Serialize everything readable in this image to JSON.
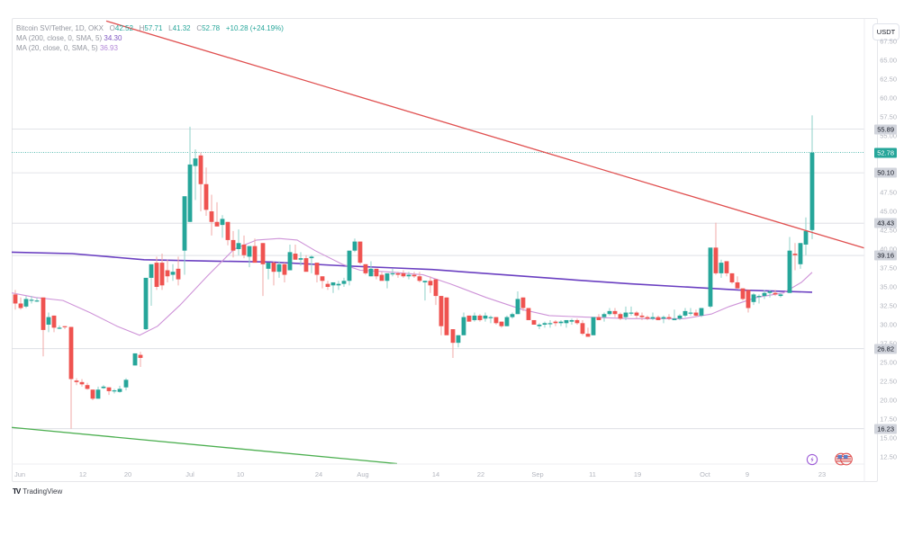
{
  "header": {
    "symbol": "Bitcoin SV/Tether, 1D, OKX",
    "ohlc": {
      "o_label": "O",
      "o": "42.52",
      "h_label": "H",
      "h": "57.71",
      "l_label": "L",
      "l": "41.32",
      "c_label": "C",
      "c": "52.78",
      "change": "+10.28 (+24.19%)"
    },
    "ma200": {
      "label": "MA (200, close, 0, SMA, 5)",
      "value": "34.30"
    },
    "ma20": {
      "label": "MA (20, close, 0, SMA, 5)",
      "value": "36.93"
    }
  },
  "currency_button": "USDT",
  "branding": {
    "logo_mark": "TV",
    "logo_text": "TradingView"
  },
  "colors": {
    "up": "#26a69a",
    "down": "#ef5350",
    "ma200": "#6a3fc1",
    "ma20": "#ce93d8",
    "trend_red": "#e05050",
    "trend_green": "#4caf50",
    "grid": "#eef0f3",
    "axis_text": "#b2b5be"
  },
  "price_labels": [
    {
      "value": "55.89",
      "style": "grey"
    },
    {
      "value": "52.78",
      "style": "green"
    },
    {
      "value": "50.10",
      "style": "grey"
    },
    {
      "value": "43.43",
      "style": "grey"
    },
    {
      "value": "39.16",
      "style": "grey"
    },
    {
      "value": "26.82",
      "style": "grey"
    },
    {
      "value": "16.23",
      "style": "grey"
    }
  ],
  "chart_data": {
    "type": "candlestick",
    "title": "Bitcoin SV/Tether, 1D, OKX",
    "xlabel": "",
    "ylabel": "USDT",
    "ylim": [
      11,
      68
    ],
    "y_ticks": [
      "12.50",
      "15.00",
      "17.50",
      "20.00",
      "22.50",
      "25.00",
      "27.50",
      "30.00",
      "32.50",
      "35.00",
      "37.50",
      "40.00",
      "42.50",
      "45.00",
      "47.50",
      "50.00",
      "52.50",
      "55.00",
      "57.50",
      "60.00",
      "62.50",
      "65.00",
      "67.50"
    ],
    "x_ticks": [
      {
        "label": "Jun",
        "x": 22
      },
      {
        "label": "12",
        "x": 92
      },
      {
        "label": "20",
        "x": 142
      },
      {
        "label": "Jul",
        "x": 211
      },
      {
        "label": "10",
        "x": 267
      },
      {
        "label": "24",
        "x": 354
      },
      {
        "label": "Aug",
        "x": 403
      },
      {
        "label": "14",
        "x": 484
      },
      {
        "label": "22",
        "x": 534
      },
      {
        "label": "Sep",
        "x": 597
      },
      {
        "label": "11",
        "x": 658
      },
      {
        "label": "19",
        "x": 708
      },
      {
        "label": "Oct",
        "x": 783
      },
      {
        "label": "9",
        "x": 830
      },
      {
        "label": "23",
        "x": 913
      }
    ],
    "horizontal_levels": [
      55.89,
      50.1,
      43.43,
      39.16,
      26.82,
      16.23
    ],
    "last_price_line": 52.78,
    "candles": [
      [
        17,
        34.0,
        34.6,
        32.0,
        32.8
      ],
      [
        23,
        32.8,
        33.6,
        32.0,
        32.2
      ],
      [
        29,
        32.4,
        33.8,
        32.2,
        33.4
      ],
      [
        35,
        33.2,
        33.8,
        32.8,
        33.3
      ],
      [
        41,
        33.2,
        33.6,
        33.0,
        33.2
      ],
      [
        48,
        33.6,
        33.6,
        25.8,
        29.3
      ],
      [
        54,
        30.0,
        31.6,
        29.0,
        31.0
      ],
      [
        60,
        31.2,
        31.2,
        29.0,
        29.6
      ],
      [
        66,
        29.6,
        29.9,
        29.4,
        29.6
      ],
      [
        72,
        29.8,
        29.8,
        29.4,
        29.7
      ],
      [
        79,
        29.7,
        29.7,
        16.23,
        22.8
      ],
      [
        85,
        22.6,
        22.9,
        22.0,
        22.4
      ],
      [
        91,
        22.4,
        22.8,
        21.8,
        22.1
      ],
      [
        97,
        22.0,
        22.3,
        21.4,
        21.5
      ],
      [
        103,
        21.4,
        21.4,
        20.0,
        20.2
      ],
      [
        109,
        20.2,
        21.8,
        20.2,
        21.4
      ],
      [
        115,
        21.6,
        22.0,
        21.5,
        21.8
      ],
      [
        121,
        21.7,
        21.7,
        20.7,
        21.2
      ],
      [
        127,
        21.2,
        21.5,
        20.9,
        21.3
      ],
      [
        133,
        21.1,
        21.9,
        21.0,
        21.5
      ],
      [
        140,
        21.7,
        22.9,
        21.3,
        22.7
      ],
      [
        150,
        24.6,
        25.4,
        24.6,
        26.2
      ],
      [
        156,
        26.0,
        26.4,
        24.4,
        25.6
      ],
      [
        162,
        29.4,
        35.2,
        29.3,
        36.2
      ],
      [
        168,
        36.2,
        37.3,
        32.5,
        38.0
      ],
      [
        174,
        38.2,
        39.0,
        34.6,
        35.0
      ],
      [
        180,
        38.2,
        39.4,
        34.6,
        35.2
      ],
      [
        186,
        37.2,
        38.6,
        35.6,
        36.4
      ],
      [
        192,
        36.6,
        38.0,
        35.8,
        37.0
      ],
      [
        198,
        37.4,
        39.0,
        35.2,
        36.0
      ],
      [
        205,
        39.8,
        43.8,
        36.6,
        47.0
      ],
      [
        211,
        43.6,
        56.2,
        43.6,
        51.2
      ],
      [
        217,
        51.0,
        53.2,
        46.5,
        52.0
      ],
      [
        223,
        52.4,
        52.8,
        45.0,
        48.6
      ],
      [
        229,
        48.6,
        50.8,
        44.4,
        45.2
      ],
      [
        235,
        45.0,
        47.2,
        41.8,
        43.6
      ],
      [
        241,
        43.6,
        46.2,
        43.0,
        43.0
      ],
      [
        247,
        43.2,
        44.5,
        41.5,
        44.0
      ],
      [
        253,
        43.6,
        43.6,
        40.5,
        41.2
      ],
      [
        259,
        41.2,
        42.4,
        38.9,
        39.8
      ],
      [
        265,
        40.0,
        42.6,
        39.2,
        40.8
      ],
      [
        271,
        40.6,
        41.8,
        38.8,
        39.2
      ],
      [
        277,
        39.0,
        40.4,
        37.6,
        40.4
      ],
      [
        283,
        40.4,
        41.4,
        38.4,
        38.2
      ],
      [
        292,
        40.8,
        40.8,
        33.8,
        38.0
      ],
      [
        298,
        37.4,
        38.2,
        36.0,
        38.2
      ],
      [
        304,
        38.2,
        38.4,
        35.2,
        37.0
      ],
      [
        310,
        37.0,
        38.4,
        36.2,
        38.0
      ],
      [
        316,
        38.0,
        38.2,
        35.6,
        36.6
      ],
      [
        322,
        37.2,
        40.6,
        37.2,
        39.6
      ],
      [
        328,
        39.4,
        40.6,
        38.6,
        38.6
      ],
      [
        334,
        38.6,
        39.6,
        37.8,
        38.8
      ],
      [
        340,
        38.8,
        39.2,
        37.4,
        37.0
      ],
      [
        346,
        38.8,
        39.2,
        36.8,
        39.0
      ],
      [
        352,
        38.2,
        38.2,
        35.6,
        36.6
      ],
      [
        358,
        36.4,
        36.4,
        34.8,
        35.8
      ],
      [
        364,
        35.4,
        35.8,
        34.6,
        35.0
      ],
      [
        370,
        35.2,
        35.4,
        34.2,
        35.6
      ],
      [
        376,
        35.2,
        35.8,
        34.6,
        35.4
      ],
      [
        382,
        35.4,
        36.2,
        35.0,
        35.8
      ],
      [
        388,
        35.8,
        36.8,
        35.2,
        39.8
      ],
      [
        394,
        39.8,
        41.4,
        39.6,
        41.0
      ],
      [
        400,
        41.0,
        41.0,
        38.0,
        38.2
      ],
      [
        406,
        38.0,
        38.0,
        36.6,
        36.8
      ],
      [
        412,
        36.4,
        38.4,
        36.4,
        37.4
      ],
      [
        418,
        37.4,
        37.4,
        36.0,
        36.4
      ],
      [
        424,
        36.6,
        37.0,
        36.0,
        35.8
      ],
      [
        430,
        35.8,
        36.4,
        34.8,
        36.8
      ],
      [
        436,
        36.8,
        37.4,
        36.4,
        36.8
      ],
      [
        442,
        36.8,
        37.0,
        36.2,
        36.6
      ],
      [
        448,
        36.8,
        37.2,
        36.2,
        36.4
      ],
      [
        454,
        36.4,
        37.0,
        36.0,
        36.6
      ],
      [
        460,
        36.6,
        37.0,
        36.2,
        36.4
      ],
      [
        466,
        36.4,
        37.0,
        35.6,
        35.8
      ],
      [
        472,
        35.6,
        35.8,
        33.2,
        35.8
      ],
      [
        478,
        35.8,
        36.4,
        34.2,
        35.2
      ],
      [
        484,
        36.0,
        36.0,
        32.6,
        33.8
      ],
      [
        490,
        33.8,
        33.8,
        28.6,
        29.8
      ],
      [
        496,
        33.6,
        33.6,
        29.8,
        28.6
      ],
      [
        503,
        29.4,
        29.4,
        25.6,
        27.6
      ],
      [
        509,
        27.6,
        28.6,
        27.0,
        28.6
      ],
      [
        515,
        28.6,
        31.6,
        28.6,
        31.0
      ],
      [
        521,
        31.2,
        31.2,
        30.8,
        30.4
      ],
      [
        527,
        30.6,
        31.6,
        30.4,
        31.2
      ],
      [
        533,
        31.2,
        31.4,
        30.4,
        30.6
      ],
      [
        539,
        30.8,
        31.6,
        30.4,
        31.2
      ],
      [
        545,
        31.0,
        31.2,
        30.2,
        31.0
      ],
      [
        551,
        31.0,
        31.0,
        30.0,
        30.2
      ],
      [
        557,
        30.4,
        30.4,
        29.6,
        29.8
      ],
      [
        563,
        29.8,
        31.2,
        29.8,
        31.0
      ],
      [
        569,
        31.0,
        31.6,
        30.8,
        31.4
      ],
      [
        575,
        31.4,
        34.4,
        31.4,
        33.4
      ],
      [
        581,
        33.6,
        33.6,
        31.8,
        32.2
      ],
      [
        587,
        32.2,
        32.2,
        30.6,
        30.6
      ],
      [
        593,
        30.6,
        30.6,
        30.2,
        30.0
      ],
      [
        599,
        29.8,
        30.2,
        29.4,
        30.0
      ],
      [
        605,
        30.0,
        30.4,
        29.6,
        30.2
      ],
      [
        611,
        30.2,
        30.6,
        29.6,
        30.2
      ],
      [
        617,
        30.4,
        30.6,
        29.8,
        30.2
      ],
      [
        623,
        30.2,
        30.6,
        29.8,
        30.4
      ],
      [
        629,
        30.2,
        30.6,
        29.6,
        30.6
      ],
      [
        635,
        30.4,
        30.8,
        30.0,
        30.6
      ],
      [
        641,
        30.6,
        30.8,
        30.0,
        30.2
      ],
      [
        647,
        30.2,
        30.6,
        28.6,
        28.8
      ],
      [
        653,
        28.8,
        29.6,
        28.4,
        28.4
      ],
      [
        659,
        28.6,
        31.0,
        28.6,
        31.0
      ],
      [
        665,
        31.0,
        31.4,
        30.6,
        30.6
      ],
      [
        671,
        31.0,
        31.6,
        30.4,
        31.4
      ],
      [
        677,
        31.4,
        32.2,
        31.2,
        31.8
      ],
      [
        683,
        31.8,
        32.2,
        31.0,
        31.4
      ],
      [
        689,
        31.4,
        31.6,
        30.6,
        30.8
      ],
      [
        695,
        31.0,
        32.4,
        30.6,
        31.6
      ],
      [
        701,
        31.6,
        32.4,
        31.2,
        31.6
      ],
      [
        707,
        31.6,
        31.8,
        30.8,
        31.2
      ],
      [
        713,
        31.2,
        31.6,
        30.6,
        31.0
      ],
      [
        719,
        31.0,
        31.2,
        30.6,
        30.8
      ],
      [
        725,
        30.8,
        31.6,
        30.6,
        31.0
      ],
      [
        731,
        31.0,
        31.2,
        30.6,
        30.6
      ],
      [
        737,
        30.8,
        31.2,
        30.2,
        31.0
      ],
      [
        743,
        31.0,
        31.4,
        30.6,
        30.8
      ],
      [
        749,
        30.6,
        32.0,
        30.6,
        30.8
      ],
      [
        755,
        30.8,
        31.4,
        30.6,
        31.2
      ],
      [
        761,
        31.2,
        32.2,
        31.0,
        31.8
      ],
      [
        767,
        31.6,
        32.2,
        31.2,
        31.6
      ],
      [
        773,
        31.6,
        32.0,
        31.0,
        31.2
      ],
      [
        779,
        31.2,
        32.2,
        31.0,
        32.2
      ],
      [
        789,
        32.4,
        39.8,
        32.2,
        40.2
      ],
      [
        795,
        40.2,
        43.5,
        36.6,
        36.8
      ],
      [
        801,
        36.8,
        38.6,
        36.2,
        38.2
      ],
      [
        807,
        38.4,
        38.4,
        36.4,
        36.8
      ],
      [
        813,
        36.8,
        36.8,
        35.4,
        35.6
      ],
      [
        819,
        35.6,
        36.4,
        35.0,
        34.8
      ],
      [
        825,
        34.8,
        34.8,
        33.2,
        33.4
      ],
      [
        831,
        34.6,
        34.6,
        31.6,
        32.2
      ],
      [
        837,
        33.0,
        34.2,
        32.6,
        34.0
      ],
      [
        843,
        33.8,
        34.0,
        32.8,
        33.8
      ],
      [
        849,
        33.8,
        34.6,
        33.4,
        34.2
      ],
      [
        855,
        34.2,
        34.6,
        33.6,
        34.4
      ],
      [
        861,
        34.2,
        34.6,
        33.8,
        34.0
      ],
      [
        867,
        33.8,
        34.2,
        33.6,
        34.0
      ],
      [
        877,
        34.2,
        41.6,
        34.2,
        39.8
      ],
      [
        883,
        39.4,
        40.8,
        37.2,
        39.2
      ],
      [
        889,
        38.0,
        40.8,
        37.4,
        40.8
      ],
      [
        895,
        40.6,
        44.2,
        39.2,
        42.4
      ],
      [
        902,
        42.52,
        57.71,
        41.32,
        52.78
      ]
    ],
    "series": [
      {
        "name": "MA (200, close, 0, SMA, 5)",
        "color": "#6a3fc1",
        "last": 34.3,
        "points": [
          [
            13,
            39.6
          ],
          [
            80,
            39.4
          ],
          [
            160,
            38.6
          ],
          [
            240,
            38.4
          ],
          [
            300,
            38.3
          ],
          [
            380,
            37.8
          ],
          [
            440,
            37.5
          ],
          [
            480,
            37.3
          ],
          [
            560,
            36.6
          ],
          [
            640,
            35.9
          ],
          [
            700,
            35.4
          ],
          [
            760,
            35.0
          ],
          [
            820,
            34.6
          ],
          [
            902,
            34.3
          ]
        ]
      },
      {
        "name": "MA (20, close, 0, SMA, 5)",
        "color": "#ce93d8",
        "last": 36.93,
        "points": [
          [
            13,
            34.2
          ],
          [
            40,
            33.6
          ],
          [
            70,
            33.2
          ],
          [
            100,
            31.6
          ],
          [
            130,
            29.8
          ],
          [
            155,
            28.6
          ],
          [
            175,
            29.8
          ],
          [
            200,
            32.6
          ],
          [
            230,
            36.4
          ],
          [
            260,
            40.0
          ],
          [
            285,
            41.2
          ],
          [
            310,
            41.4
          ],
          [
            330,
            41.2
          ],
          [
            350,
            39.8
          ],
          [
            380,
            38.0
          ],
          [
            400,
            37.2
          ],
          [
            430,
            37.0
          ],
          [
            470,
            36.6
          ],
          [
            500,
            35.4
          ],
          [
            540,
            33.6
          ],
          [
            580,
            32.0
          ],
          [
            610,
            31.2
          ],
          [
            650,
            31.0
          ],
          [
            700,
            30.8
          ],
          [
            760,
            30.8
          ],
          [
            790,
            31.4
          ],
          [
            810,
            32.4
          ],
          [
            840,
            33.6
          ],
          [
            870,
            34.2
          ],
          [
            890,
            35.6
          ],
          [
            902,
            36.93
          ]
        ]
      }
    ],
    "trendlines": [
      {
        "name": "descending-resistance",
        "color": "#e05050",
        "from": [
          118,
          70.2
        ],
        "to": [
          975,
          39.6
        ]
      },
      {
        "name": "support-line",
        "color": "#4caf50",
        "from": [
          13,
          16.4
        ],
        "to": [
          441,
          11.6
        ]
      }
    ]
  }
}
